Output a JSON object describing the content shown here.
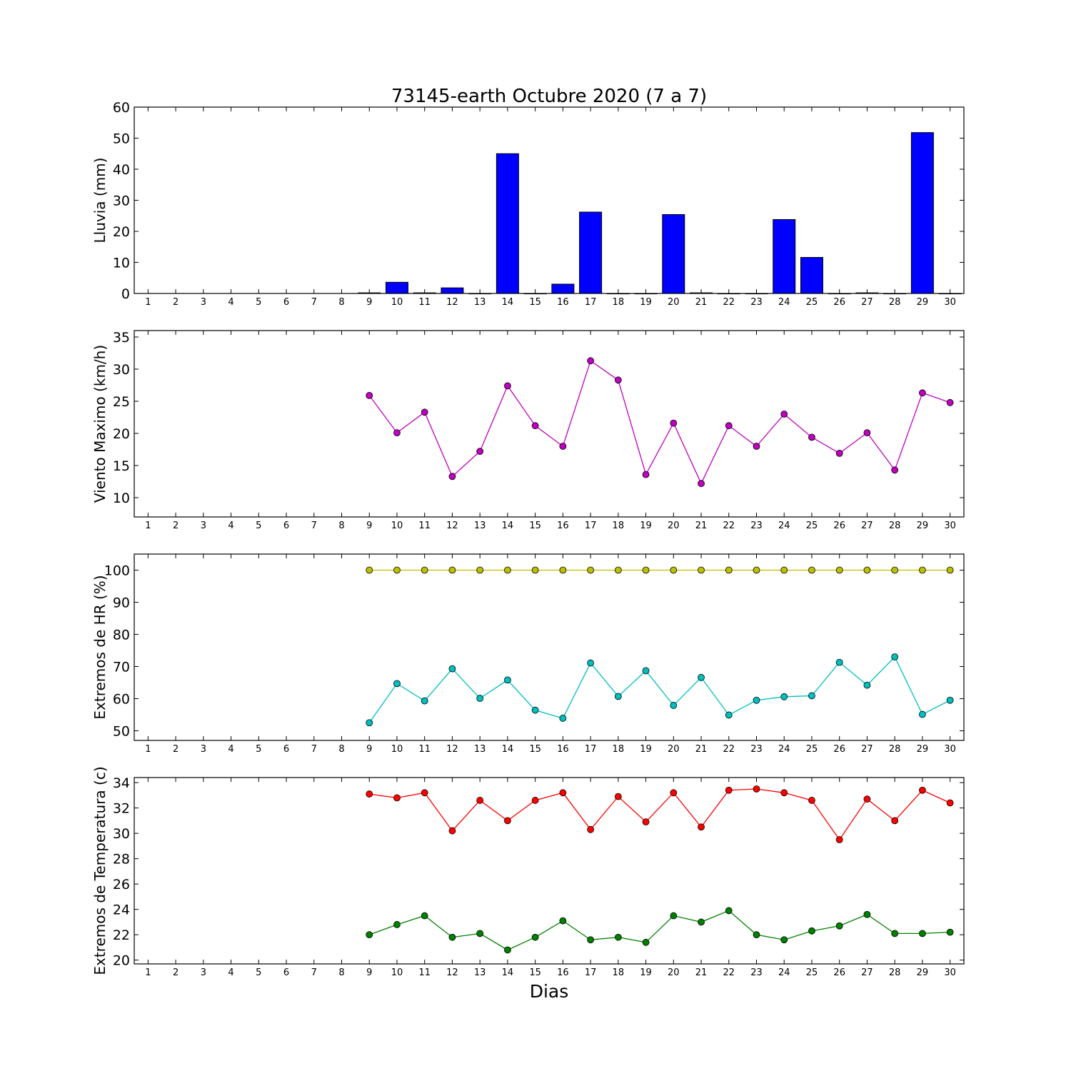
{
  "title": "73145-earth Octubre 2020  (7 a 7)",
  "xlabel": "Dias",
  "chart_data": [
    {
      "type": "bar",
      "ylabel": "Lluvia (mm)",
      "ylim": [
        0,
        60
      ],
      "yticks": [
        0,
        10,
        20,
        30,
        40,
        50,
        60
      ],
      "x": [
        1,
        2,
        3,
        4,
        5,
        6,
        7,
        8,
        9,
        10,
        11,
        12,
        13,
        14,
        15,
        16,
        17,
        18,
        19,
        20,
        21,
        22,
        23,
        24,
        25,
        26,
        27,
        28,
        29,
        30
      ],
      "xlim": [
        0.5,
        30.5
      ],
      "series": [
        {
          "color": "#0000ff",
          "values": [
            null,
            null,
            null,
            null,
            null,
            null,
            null,
            null,
            0.2,
            3.6,
            0.2,
            1.8,
            0,
            45,
            0,
            3,
            26.2,
            0,
            0,
            25.4,
            0.2,
            0,
            0,
            23.8,
            11.6,
            0,
            0.2,
            0,
            51.8,
            0
          ]
        }
      ]
    },
    {
      "type": "line",
      "ylabel": "Viento Maximo (km/h)",
      "ylim": [
        7,
        36
      ],
      "yticks": [
        10,
        15,
        20,
        25,
        30,
        35
      ],
      "x": [
        1,
        2,
        3,
        4,
        5,
        6,
        7,
        8,
        9,
        10,
        11,
        12,
        13,
        14,
        15,
        16,
        17,
        18,
        19,
        20,
        21,
        22,
        23,
        24,
        25,
        26,
        27,
        28,
        29,
        30
      ],
      "xlim": [
        0.5,
        30.5
      ],
      "series": [
        {
          "color": "#bf00bf",
          "values": [
            null,
            null,
            null,
            null,
            null,
            null,
            null,
            null,
            25.9,
            20.1,
            23.3,
            13.3,
            17.2,
            27.4,
            21.2,
            18,
            31.3,
            28.3,
            13.6,
            21.6,
            12.2,
            21.2,
            18,
            23,
            19.4,
            16.9,
            20.1,
            14.3,
            26.3,
            24.8
          ]
        }
      ]
    },
    {
      "type": "line",
      "ylabel": "Extremos de HR (%)",
      "ylim": [
        47,
        105
      ],
      "yticks": [
        50,
        60,
        70,
        80,
        90,
        100
      ],
      "x": [
        1,
        2,
        3,
        4,
        5,
        6,
        7,
        8,
        9,
        10,
        11,
        12,
        13,
        14,
        15,
        16,
        17,
        18,
        19,
        20,
        21,
        22,
        23,
        24,
        25,
        26,
        27,
        28,
        29,
        30
      ],
      "xlim": [
        0.5,
        30.5
      ],
      "series": [
        {
          "color": "#bfbf00",
          "values": [
            null,
            null,
            null,
            null,
            null,
            null,
            null,
            null,
            100,
            100,
            100,
            100,
            100,
            100,
            100,
            100,
            100,
            100,
            100,
            100,
            100,
            100,
            100,
            100,
            100,
            100,
            100,
            100,
            100,
            100
          ]
        },
        {
          "color": "#00bfbf",
          "values": [
            null,
            null,
            null,
            null,
            null,
            null,
            null,
            null,
            52.5,
            64.7,
            59.3,
            69.3,
            60.1,
            65.8,
            56.4,
            53.9,
            71.1,
            60.7,
            68.7,
            57.9,
            66.6,
            54.9,
            59.5,
            60.6,
            60.9,
            71.3,
            64.2,
            73,
            55.1,
            59.5
          ]
        }
      ]
    },
    {
      "type": "line",
      "ylabel": "Extremos de Temperatura (c)",
      "ylim": [
        19.7,
        34.4
      ],
      "yticks": [
        20,
        22,
        24,
        26,
        28,
        30,
        32,
        34
      ],
      "x": [
        1,
        2,
        3,
        4,
        5,
        6,
        7,
        8,
        9,
        10,
        11,
        12,
        13,
        14,
        15,
        16,
        17,
        18,
        19,
        20,
        21,
        22,
        23,
        24,
        25,
        26,
        27,
        28,
        29,
        30
      ],
      "xlim": [
        0.5,
        30.5
      ],
      "series": [
        {
          "color": "#ff0000",
          "values": [
            null,
            null,
            null,
            null,
            null,
            null,
            null,
            null,
            33.1,
            32.8,
            33.2,
            30.2,
            32.6,
            31,
            32.6,
            33.2,
            30.3,
            32.9,
            30.9,
            33.2,
            30.5,
            33.4,
            33.5,
            33.2,
            32.6,
            29.5,
            32.7,
            31,
            33.4,
            32.4
          ]
        },
        {
          "color": "#008000",
          "values": [
            null,
            null,
            null,
            null,
            null,
            null,
            null,
            null,
            22,
            22.8,
            23.5,
            21.8,
            22.1,
            20.8,
            21.8,
            23.1,
            21.6,
            21.8,
            21.4,
            23.5,
            23,
            23.9,
            22,
            21.6,
            22.3,
            22.7,
            23.6,
            22.1,
            22.1,
            22.2
          ]
        }
      ]
    }
  ]
}
